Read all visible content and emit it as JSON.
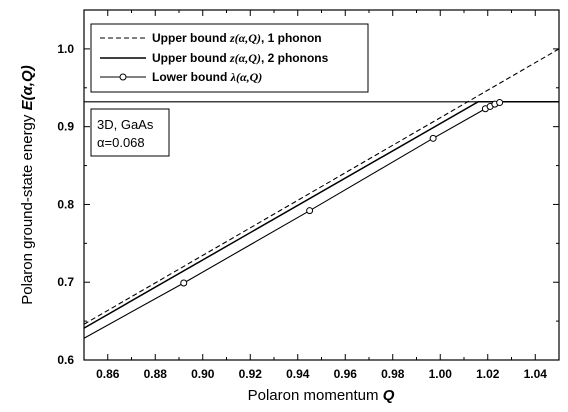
{
  "chart_data": {
    "type": "line",
    "xlabel": {
      "main": "Polaron momentum ",
      "symbol": "Q"
    },
    "ylabel": {
      "main": "Polaron ground-state energy ",
      "symbol": "E(α,Q)"
    },
    "xlim": [
      0.85,
      1.05
    ],
    "ylim": [
      0.6,
      1.05
    ],
    "x_ticks": [
      {
        "value": 0.86,
        "label": "0.86"
      },
      {
        "value": 0.88,
        "label": "0.88"
      },
      {
        "value": 0.9,
        "label": "0.90"
      },
      {
        "value": 0.92,
        "label": "0.92"
      },
      {
        "value": 0.94,
        "label": "0.94"
      },
      {
        "value": 0.96,
        "label": "0.96"
      },
      {
        "value": 0.98,
        "label": "0.98"
      },
      {
        "value": 1.0,
        "label": "1.00"
      },
      {
        "value": 1.02,
        "label": "1.02"
      },
      {
        "value": 1.04,
        "label": "1.04"
      }
    ],
    "y_ticks": [
      {
        "value": 0.6,
        "label": "0.6"
      },
      {
        "value": 0.7,
        "label": "0.7"
      },
      {
        "value": 0.8,
        "label": "0.8"
      },
      {
        "value": 0.9,
        "label": "0.9"
      },
      {
        "value": 1.0,
        "label": "1.0"
      }
    ],
    "x_minor_step": 0.01,
    "y_minor_step": 0.05,
    "horizontal_line": {
      "y": 0.932
    },
    "annotation": {
      "line1": "3D, GaAs",
      "line2": "α=0.068"
    },
    "series": [
      {
        "legend": {
          "prefix": "Upper bound ",
          "symbol": "z(α,Q)",
          "suffix": ", 1 phonon"
        },
        "style": "dashed",
        "color": "#000000",
        "x": [
          0.85,
          1.05
        ],
        "y": [
          0.646,
          1.0
        ]
      },
      {
        "legend": {
          "prefix": "Upper bound ",
          "symbol": "z(α,Q)",
          "suffix": ", 2 phonons"
        },
        "style": "solid",
        "color": "#000000",
        "x": [
          0.85,
          1.016,
          1.05
        ],
        "y": [
          0.641,
          0.932,
          0.932
        ]
      },
      {
        "legend": {
          "prefix": "Lower bound ",
          "symbol": "λ(α,Q)",
          "suffix": ""
        },
        "style": "solid-markers",
        "color": "#000000",
        "x": [
          0.85,
          0.892,
          0.945,
          0.997,
          1.019,
          1.021,
          1.023,
          1.025
        ],
        "y": [
          0.628,
          0.699,
          0.792,
          0.885,
          0.923,
          0.926,
          0.929,
          0.931
        ],
        "markers": [
          {
            "x": 0.892,
            "y": 0.699
          },
          {
            "x": 0.945,
            "y": 0.792
          },
          {
            "x": 0.997,
            "y": 0.885
          },
          {
            "x": 1.019,
            "y": 0.923
          },
          {
            "x": 1.021,
            "y": 0.926
          },
          {
            "x": 1.023,
            "y": 0.929
          },
          {
            "x": 1.025,
            "y": 0.931
          }
        ]
      }
    ]
  }
}
